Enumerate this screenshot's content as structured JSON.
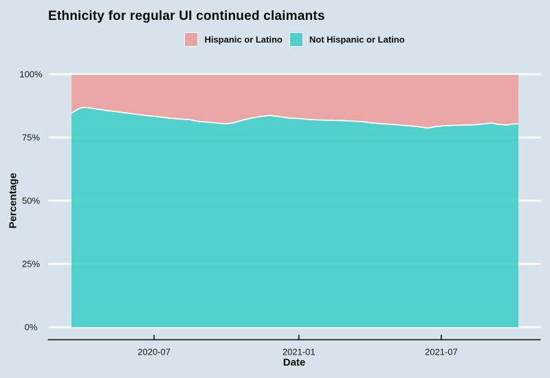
{
  "title": "Ethnicity for regular UI continued claimants",
  "legend": {
    "items": [
      {
        "label": "Hispanic or Latino",
        "color": "#e9a2a2"
      },
      {
        "label": "Not Hispanic or Latino",
        "color": "#4fcfcc"
      }
    ]
  },
  "colors": {
    "background": "#d6e3eb",
    "hispanic_fill": "#eb9f9d",
    "not_hispanic_fill": "#43cdc9",
    "area_outline": "#ffffff",
    "gridline": "#ffffff",
    "axis_line": "#161616",
    "tick_text": "#161616",
    "text": "#0a0a0a"
  },
  "chart_data": {
    "type": "area",
    "stacked": true,
    "title": "Ethnicity for regular UI continued claimants",
    "xlabel": "Date",
    "ylabel": "Percentage",
    "ylim": [
      0,
      100
    ],
    "grid": "horizontal-white-gridlines",
    "legend_position": "top-center",
    "y_ticks": [
      {
        "value": 0,
        "label": "0%"
      },
      {
        "value": 25,
        "label": "25%"
      },
      {
        "value": 50,
        "label": "50%"
      },
      {
        "value": 75,
        "label": "75%"
      },
      {
        "value": 100,
        "label": "100%"
      }
    ],
    "x_ticks": [
      {
        "date": "2020-07-01",
        "label": "2020-07"
      },
      {
        "date": "2021-01-01",
        "label": "2021-01"
      },
      {
        "date": "2021-07-01",
        "label": "2021-07"
      }
    ],
    "x": [
      "2020-03-18",
      "2020-03-25",
      "2020-04-01",
      "2020-04-08",
      "2020-04-18",
      "2020-05-01",
      "2020-05-14",
      "2020-05-27",
      "2020-06-10",
      "2020-06-23",
      "2020-07-06",
      "2020-07-19",
      "2020-08-01",
      "2020-08-14",
      "2020-08-27",
      "2020-09-09",
      "2020-09-22",
      "2020-10-01",
      "2020-10-10",
      "2020-10-21",
      "2020-11-01",
      "2020-11-12",
      "2020-11-25",
      "2020-12-06",
      "2020-12-19",
      "2021-01-01",
      "2021-01-14",
      "2021-01-28",
      "2021-02-10",
      "2021-02-23",
      "2021-03-08",
      "2021-03-21",
      "2021-04-03",
      "2021-04-16",
      "2021-04-29",
      "2021-05-13",
      "2021-05-26",
      "2021-06-05",
      "2021-06-14",
      "2021-06-23",
      "2021-07-04",
      "2021-07-17",
      "2021-07-30",
      "2021-08-12",
      "2021-08-25",
      "2021-09-03",
      "2021-09-12",
      "2021-09-22",
      "2021-09-30",
      "2021-10-07"
    ],
    "series": [
      {
        "name": "Not Hispanic or Latino",
        "color": "#4fcfcc",
        "values": [
          84.6,
          86.0,
          86.9,
          86.8,
          86.3,
          85.7,
          85.2,
          84.7,
          84.1,
          83.6,
          83.2,
          82.7,
          82.3,
          82.1,
          81.3,
          81.0,
          80.6,
          80.4,
          80.8,
          81.8,
          82.6,
          83.2,
          83.7,
          83.3,
          82.7,
          82.5,
          82.1,
          81.9,
          81.8,
          81.7,
          81.5,
          81.3,
          80.8,
          80.4,
          80.2,
          79.8,
          79.5,
          79.1,
          78.7,
          79.3,
          79.6,
          79.8,
          79.9,
          80.0,
          80.4,
          80.7,
          80.2,
          79.9,
          80.3,
          80.4
        ]
      },
      {
        "name": "Hispanic or Latino",
        "color": "#e9a2a2",
        "values": [
          15.4,
          14.0,
          13.1,
          13.2,
          13.7,
          14.3,
          14.8,
          15.3,
          15.9,
          16.4,
          16.8,
          17.3,
          17.7,
          17.9,
          18.7,
          19.0,
          19.4,
          19.6,
          19.2,
          18.2,
          17.4,
          16.8,
          16.3,
          16.7,
          17.3,
          17.5,
          17.9,
          18.1,
          18.2,
          18.3,
          18.5,
          18.7,
          19.2,
          19.6,
          19.8,
          20.2,
          20.5,
          20.9,
          21.3,
          20.7,
          20.4,
          20.2,
          20.1,
          20.0,
          19.6,
          19.3,
          19.8,
          20.1,
          19.7,
          19.6
        ]
      }
    ]
  }
}
